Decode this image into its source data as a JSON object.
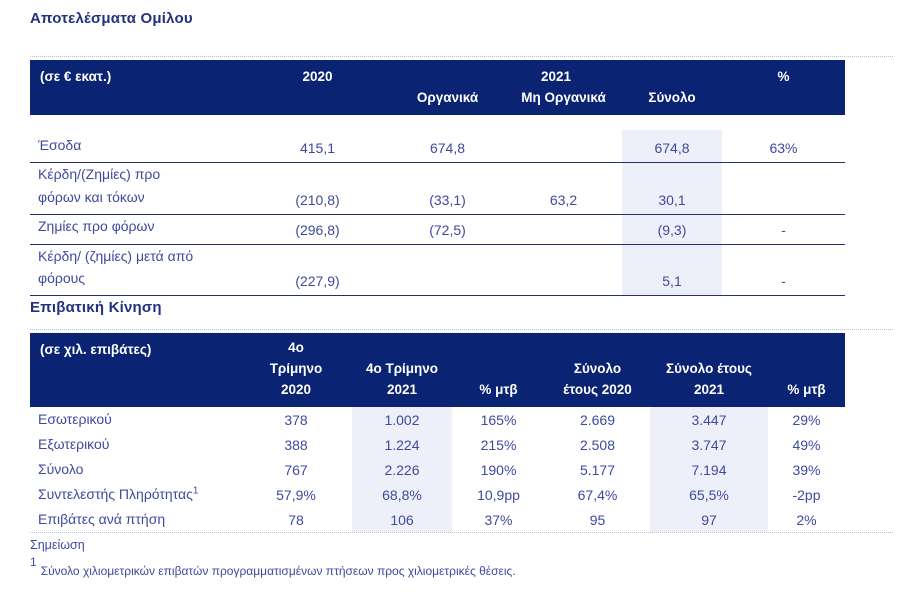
{
  "colors": {
    "header_bar": "#0a2473",
    "header_text": "#ffffff",
    "title_text": "#223180",
    "body_text": "#3d4a9e",
    "row_line": "#22307c",
    "highlight_column": "#edf0f8",
    "dotted_line": "#b6c0d6"
  },
  "group_results": {
    "title": "Αποτελέσματα Ομίλου",
    "header": {
      "unit": "(σε € εκατ.)",
      "y2020": "2020",
      "y2021": "2021",
      "pct": "%",
      "organic": "Οργανικά",
      "non_organic": "Μη Οργανικά",
      "total": "Σύνολο"
    },
    "rows": [
      {
        "label": "Έσοδα",
        "y2020": "415,1",
        "organic": "674,8",
        "non_organic": "",
        "total": "674,8",
        "pct": "63%"
      },
      {
        "label": "Κέρδη/(Ζημίες) προ\nφόρων και τόκων",
        "y2020": "(210,8)",
        "organic": "(33,1)",
        "non_organic": "63,2",
        "total": "30,1",
        "pct": ""
      },
      {
        "label": "Ζημίες προ φόρων",
        "y2020": "(296,8)",
        "organic": "(72,5)",
        "non_organic": "",
        "total": "(9,3)",
        "pct": "-"
      },
      {
        "label": "Κέρδη/ (ζημίες) μετά από\nφόρους",
        "y2020": "(227,9)",
        "organic": "",
        "non_organic": "",
        "total": "5,1",
        "pct": "-"
      }
    ]
  },
  "passenger_traffic": {
    "title": "Επιβατική Κίνηση",
    "header": {
      "unit": "(σε χιλ. επιβάτες)",
      "q4_2020": "4ο\nΤρίμηνο\n2020",
      "q4_2021": "4ο Τρίμηνο\n2021",
      "chg_q": "% μτβ",
      "fy_2020": "Σύνολο\nέτους 2020",
      "fy_2021": "Σύνολο έτους\n2021",
      "chg_fy": "% μτβ"
    },
    "rows": [
      {
        "label": "Εσωτερικού",
        "q4_2020": "378",
        "q4_2021": "1.002",
        "chg_q": "165%",
        "fy_2020": "2.669",
        "fy_2021": "3.447",
        "chg_fy": "29%"
      },
      {
        "label": "Εξωτερικού",
        "q4_2020": "388",
        "q4_2021": "1.224",
        "chg_q": "215%",
        "fy_2020": "2.508",
        "fy_2021": "3.747",
        "chg_fy": "49%"
      },
      {
        "label": "Σύνολο",
        "q4_2020": "767",
        "q4_2021": "2.226",
        "chg_q": "190%",
        "fy_2020": "5.177",
        "fy_2021": "7.194",
        "chg_fy": "39%"
      },
      {
        "label": "Συντελεστής Πληρότητας",
        "label_sup": "1",
        "q4_2020": "57,9%",
        "q4_2021": "68,8%",
        "chg_q": "10,9pp",
        "fy_2020": "67,4%",
        "fy_2021": "65,5%",
        "chg_fy": "-2pp"
      },
      {
        "label": "Επιβάτες ανά πτήση",
        "q4_2020": "78",
        "q4_2021": "106",
        "chg_q": "37%",
        "fy_2020": "95",
        "fy_2021": "97",
        "chg_fy": "2%"
      }
    ]
  },
  "notes": {
    "heading": "Σημείωση",
    "footnote_marker": "1",
    "footnote_text": "Σύνολο χιλιομετρικών επιβατών προγραμματισμένων πτήσεων προς χιλιομετρικές θέσεις."
  }
}
